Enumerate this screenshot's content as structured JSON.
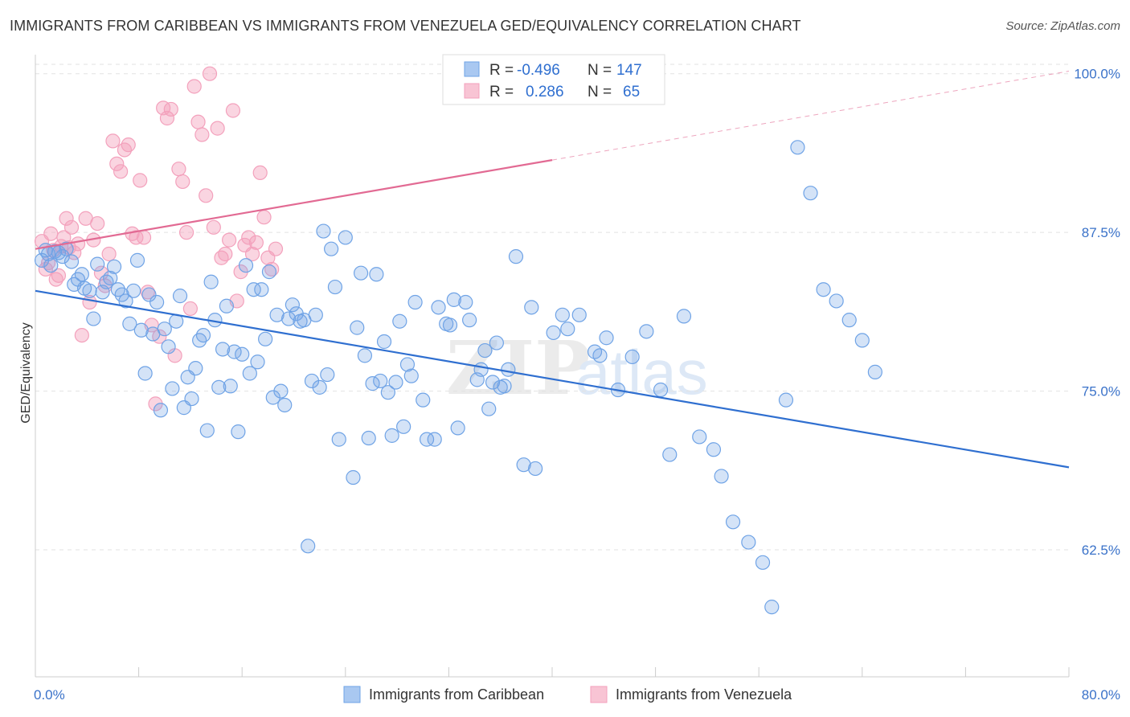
{
  "title": "IMMIGRANTS FROM CARIBBEAN VS IMMIGRANTS FROM VENEZUELA GED/EQUIVALENCY CORRELATION CHART",
  "source": "Source: ZipAtlas.com",
  "watermark": {
    "zip": "ZIP",
    "atlas": "atlas"
  },
  "legend_box": {
    "rows": [
      {
        "r_label": "R =",
        "r_value": "-0.496",
        "n_label": "N =",
        "n_value": "147"
      },
      {
        "r_label": "R =",
        "r_value": "0.286",
        "n_label": "N =",
        "n_value": "65"
      }
    ]
  },
  "chart_data": {
    "type": "scatter",
    "title": "IMMIGRANTS FROM CARIBBEAN VS IMMIGRANTS FROM VENEZUELA GED/EQUIVALENCY CORRELATION CHART",
    "xlabel": "",
    "ylabel": "GED/Equivalency",
    "xlim": [
      0,
      80
    ],
    "ylim": [
      52.5,
      101.5
    ],
    "x_tick_labels": [
      "0.0%",
      "80.0%"
    ],
    "y_ticks": [
      62.5,
      75.0,
      87.5,
      100.0
    ],
    "y_tick_labels": [
      "62.5%",
      "75.0%",
      "87.5%",
      "100.0%"
    ],
    "legend": [
      "Immigrants from Caribbean",
      "Immigrants from Venezuela"
    ],
    "colors": {
      "caribbean": "#6fa3e6",
      "caribbean_line": "#2f6fd0",
      "venezuela": "#f3a1bc",
      "venezuela_line": "#e26a93"
    },
    "series": [
      {
        "name": "Immigrants from Caribbean",
        "R": -0.496,
        "N": 147,
        "trend": {
          "x": [
            0,
            80
          ],
          "y": [
            82.9,
            69.0
          ]
        },
        "points": [
          [
            0.5,
            85.3
          ],
          [
            0.8,
            86.1
          ],
          [
            1.0,
            85.8
          ],
          [
            1.2,
            84.9
          ],
          [
            1.5,
            86.0
          ],
          [
            1.8,
            85.9
          ],
          [
            2.1,
            85.6
          ],
          [
            2.4,
            86.2
          ],
          [
            2.8,
            85.2
          ],
          [
            3.0,
            83.4
          ],
          [
            3.3,
            83.8
          ],
          [
            3.6,
            84.2
          ],
          [
            3.8,
            83.1
          ],
          [
            4.2,
            82.9
          ],
          [
            4.5,
            80.7
          ],
          [
            4.8,
            85.0
          ],
          [
            5.2,
            82.8
          ],
          [
            5.5,
            83.6
          ],
          [
            5.8,
            83.9
          ],
          [
            6.1,
            84.8
          ],
          [
            6.4,
            83.0
          ],
          [
            6.7,
            82.6
          ],
          [
            7.0,
            82.1
          ],
          [
            7.3,
            80.3
          ],
          [
            7.6,
            82.9
          ],
          [
            7.9,
            85.3
          ],
          [
            8.2,
            79.8
          ],
          [
            8.5,
            76.4
          ],
          [
            8.8,
            82.6
          ],
          [
            9.1,
            79.5
          ],
          [
            9.4,
            82.0
          ],
          [
            9.7,
            73.5
          ],
          [
            10.0,
            79.9
          ],
          [
            10.3,
            78.5
          ],
          [
            10.6,
            75.2
          ],
          [
            10.9,
            80.5
          ],
          [
            11.2,
            82.5
          ],
          [
            11.5,
            73.7
          ],
          [
            11.8,
            76.1
          ],
          [
            12.1,
            74.4
          ],
          [
            12.4,
            76.8
          ],
          [
            12.7,
            79.0
          ],
          [
            13.0,
            79.4
          ],
          [
            13.3,
            71.9
          ],
          [
            13.6,
            83.6
          ],
          [
            13.9,
            80.6
          ],
          [
            14.2,
            75.3
          ],
          [
            14.5,
            78.3
          ],
          [
            14.8,
            81.7
          ],
          [
            15.1,
            75.4
          ],
          [
            15.4,
            78.1
          ],
          [
            15.7,
            71.8
          ],
          [
            16.0,
            77.9
          ],
          [
            16.3,
            84.9
          ],
          [
            16.6,
            76.4
          ],
          [
            16.9,
            83.0
          ],
          [
            17.2,
            77.3
          ],
          [
            17.5,
            83.0
          ],
          [
            17.8,
            79.1
          ],
          [
            18.1,
            84.4
          ],
          [
            18.4,
            74.5
          ],
          [
            18.7,
            81.0
          ],
          [
            19.0,
            75.0
          ],
          [
            19.3,
            73.9
          ],
          [
            19.6,
            80.7
          ],
          [
            19.9,
            81.8
          ],
          [
            20.2,
            81.1
          ],
          [
            20.5,
            80.5
          ],
          [
            20.8,
            80.6
          ],
          [
            21.1,
            62.8
          ],
          [
            21.4,
            75.8
          ],
          [
            21.7,
            81.0
          ],
          [
            22.0,
            75.3
          ],
          [
            22.3,
            87.6
          ],
          [
            22.6,
            76.3
          ],
          [
            22.9,
            86.2
          ],
          [
            23.2,
            83.2
          ],
          [
            23.5,
            71.2
          ],
          [
            24.0,
            87.1
          ],
          [
            24.6,
            68.2
          ],
          [
            24.9,
            80.0
          ],
          [
            25.2,
            84.3
          ],
          [
            25.5,
            77.8
          ],
          [
            25.8,
            71.3
          ],
          [
            26.1,
            75.6
          ],
          [
            26.4,
            84.2
          ],
          [
            26.7,
            75.8
          ],
          [
            27.0,
            78.9
          ],
          [
            27.3,
            74.9
          ],
          [
            27.6,
            71.5
          ],
          [
            27.9,
            75.7
          ],
          [
            28.2,
            80.5
          ],
          [
            28.5,
            72.2
          ],
          [
            28.8,
            77.1
          ],
          [
            29.1,
            76.2
          ],
          [
            29.4,
            82.0
          ],
          [
            30.0,
            74.3
          ],
          [
            30.3,
            71.2
          ],
          [
            30.9,
            71.2
          ],
          [
            31.2,
            81.6
          ],
          [
            31.8,
            80.3
          ],
          [
            32.1,
            80.2
          ],
          [
            32.4,
            82.2
          ],
          [
            32.7,
            72.1
          ],
          [
            33.3,
            82.0
          ],
          [
            33.6,
            80.6
          ],
          [
            34.2,
            75.9
          ],
          [
            34.5,
            76.7
          ],
          [
            34.8,
            78.2
          ],
          [
            35.1,
            73.6
          ],
          [
            35.4,
            75.7
          ],
          [
            35.7,
            78.8
          ],
          [
            36.0,
            75.3
          ],
          [
            36.3,
            75.4
          ],
          [
            36.6,
            76.7
          ],
          [
            37.2,
            85.6
          ],
          [
            37.8,
            69.2
          ],
          [
            38.4,
            81.6
          ],
          [
            38.7,
            68.9
          ],
          [
            40.1,
            79.6
          ],
          [
            40.8,
            81.0
          ],
          [
            41.2,
            79.9
          ],
          [
            42.1,
            81.0
          ],
          [
            43.3,
            78.1
          ],
          [
            43.7,
            77.8
          ],
          [
            44.2,
            79.2
          ],
          [
            45.1,
            75.1
          ],
          [
            46.2,
            77.7
          ],
          [
            47.3,
            79.7
          ],
          [
            48.4,
            75.1
          ],
          [
            49.1,
            70.0
          ],
          [
            50.2,
            80.9
          ],
          [
            51.4,
            71.4
          ],
          [
            52.5,
            70.4
          ],
          [
            53.1,
            68.3
          ],
          [
            54.0,
            64.7
          ],
          [
            55.2,
            63.1
          ],
          [
            56.3,
            61.5
          ],
          [
            57.0,
            58.0
          ],
          [
            58.1,
            74.3
          ],
          [
            59.0,
            94.2
          ],
          [
            60.0,
            90.6
          ],
          [
            61.0,
            83.0
          ],
          [
            62.0,
            82.1
          ],
          [
            63.0,
            80.6
          ],
          [
            64.0,
            79.0
          ],
          [
            65.0,
            76.5
          ]
        ]
      },
      {
        "name": "Immigrants from Venezuela",
        "R": 0.286,
        "N": 65,
        "trend": {
          "x": [
            0,
            80
          ],
          "y": [
            86.2,
            100.2
          ]
        },
        "points": [
          [
            0.5,
            86.8
          ],
          [
            0.8,
            84.6
          ],
          [
            1.0,
            85.1
          ],
          [
            1.2,
            87.4
          ],
          [
            1.4,
            86.1
          ],
          [
            1.6,
            83.8
          ],
          [
            1.8,
            84.1
          ],
          [
            2.0,
            86.4
          ],
          [
            2.2,
            87.1
          ],
          [
            2.4,
            88.6
          ],
          [
            2.6,
            86.3
          ],
          [
            2.8,
            87.9
          ],
          [
            3.0,
            85.9
          ],
          [
            3.3,
            86.6
          ],
          [
            3.6,
            79.4
          ],
          [
            3.9,
            88.6
          ],
          [
            4.2,
            82.0
          ],
          [
            4.5,
            86.9
          ],
          [
            4.8,
            88.2
          ],
          [
            5.1,
            84.3
          ],
          [
            5.4,
            83.3
          ],
          [
            5.7,
            85.8
          ],
          [
            6.0,
            94.7
          ],
          [
            6.3,
            92.9
          ],
          [
            6.6,
            92.3
          ],
          [
            6.9,
            94.0
          ],
          [
            7.2,
            94.4
          ],
          [
            7.5,
            87.4
          ],
          [
            7.8,
            87.1
          ],
          [
            8.1,
            91.6
          ],
          [
            8.4,
            87.1
          ],
          [
            8.7,
            82.8
          ],
          [
            9.0,
            80.2
          ],
          [
            9.3,
            74.0
          ],
          [
            9.6,
            79.3
          ],
          [
            9.9,
            97.3
          ],
          [
            10.2,
            96.5
          ],
          [
            10.5,
            97.2
          ],
          [
            10.8,
            77.8
          ],
          [
            11.1,
            92.5
          ],
          [
            11.4,
            91.5
          ],
          [
            11.7,
            87.5
          ],
          [
            12.0,
            81.5
          ],
          [
            12.3,
            99.0
          ],
          [
            12.6,
            96.2
          ],
          [
            12.9,
            95.2
          ],
          [
            13.2,
            90.4
          ],
          [
            13.5,
            100.0
          ],
          [
            13.8,
            87.9
          ],
          [
            14.1,
            95.7
          ],
          [
            14.4,
            85.5
          ],
          [
            14.7,
            85.8
          ],
          [
            15.0,
            86.9
          ],
          [
            15.3,
            97.1
          ],
          [
            15.6,
            82.1
          ],
          [
            15.9,
            84.4
          ],
          [
            16.2,
            86.5
          ],
          [
            16.5,
            87.1
          ],
          [
            16.8,
            85.8
          ],
          [
            17.1,
            86.7
          ],
          [
            17.4,
            92.2
          ],
          [
            17.7,
            88.7
          ],
          [
            18.0,
            85.5
          ],
          [
            18.3,
            84.6
          ],
          [
            18.6,
            86.2
          ]
        ]
      }
    ]
  }
}
